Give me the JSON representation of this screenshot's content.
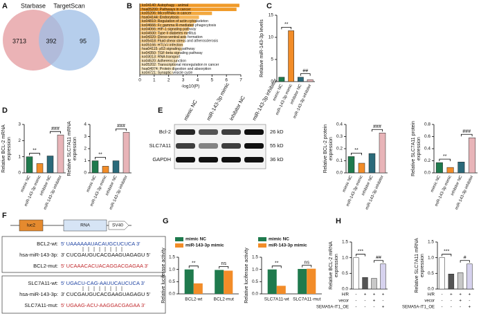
{
  "panels": [
    "A",
    "B",
    "C",
    "D",
    "E",
    "F",
    "G",
    "H"
  ],
  "venn": {
    "sets": [
      {
        "name": "Starbase",
        "color": "#e49a9d"
      },
      {
        "name": "TargetScan",
        "color": "#9dbde6"
      }
    ],
    "regions": [
      3713,
      392,
      95
    ]
  },
  "blot": {
    "lanes": [
      "mimic NC",
      "miR-143-3p mimic",
      "inhibitor NC",
      "miR-143-3p inhibitor"
    ],
    "rows": [
      {
        "protein": "Bcl-2",
        "size": "26 kD"
      },
      {
        "protein": "SLC7A11",
        "size": "55 kD"
      },
      {
        "protein": "GAPDH",
        "size": "36 kD"
      }
    ]
  },
  "construct": {
    "elements": [
      "luc2",
      "RNA",
      "SV40"
    ]
  },
  "sequences": [
    [
      {
        "name": "BCL2-wt:",
        "seq": "5' UAAAAAAUACAUGCUCUCA 3'"
      },
      {
        "name": "hsa-miR-143-3p:",
        "seq": "3' CUCGAUGUCACGAAGUAGAGU 5'"
      },
      {
        "name": "BCL2-mut:",
        "seq": "5' UCAAACACUACAGGACGAGAA 3'"
      }
    ],
    [
      {
        "name": "SLC7A11-wt:",
        "seq": "5' UGACU-CAG-AAUUCAUCUCA 3'"
      },
      {
        "name": "hsa-miR-143-3p:",
        "seq": "3' CUCGAUGUCACGAAGUAGAGU 5'"
      },
      {
        "name": "SLC7A11-mut:",
        "seq": "5' UGAAG-ACU-AAGGACGAGAA 3'"
      }
    ]
  ],
  "chart_data": [
    {
      "type": "barh",
      "xlabel": "-log10(P)",
      "categories": [
        "ko04140: Autophagy - animal",
        "hsa05200: Pathways in cancer",
        "ko05206: MicroRNAs in cancer",
        "hsa04144: Endocytosis",
        "ko04810: Regulation of actin cytoskeleton",
        "ko04666: Fc gamma R-mediated phagocytosis",
        "ko04066: HIF-1 signaling pathway",
        "ko04930: Type II diabetes mellitus",
        "ko04320: Dorso-ventral axis formation",
        "ko05418: Fluid shear stress and atherosclerosis",
        "ko05166: HTLV-I infection",
        "hsa04115: p53 signaling pathway",
        "ko04350: TGF-beta signaling pathway",
        "ko03013: RNA transport",
        "ko04520: Adherens junction",
        "ko05202: Transcriptional misregulation in cancer",
        "hsa04974: Protein digestion and absorption",
        "ko04721: Synaptic vesicle cycle"
      ],
      "values": [
        6.9,
        6.7,
        5.0,
        4.1,
        3.9,
        3.7,
        3.4,
        3.3,
        3.2,
        3.1,
        3.0,
        2.9,
        2.8,
        2.7,
        2.6,
        2.5,
        2.4,
        2.3
      ],
      "colors": [
        "#f09a28",
        "#f09a28",
        "#f2a83e",
        "#f4b456",
        "#f4b85e",
        "#f5bd68",
        "#f6c272",
        "#f6c67a",
        "#f7ca82",
        "#f7ce8a",
        "#f8d292",
        "#f8d69a",
        "#f9daa2",
        "#f9deaa",
        "#fae2b2",
        "#fae5b9",
        "#fbe9c1",
        "#fbecc8"
      ],
      "xlim": [
        0,
        7
      ],
      "xticks": [
        0,
        1,
        2,
        3,
        4,
        5,
        6,
        7
      ]
    },
    {
      "type": "bar",
      "ylabel": [
        "Relative miR-143-3p levels"
      ],
      "categories": [
        "mimic NC",
        "miR-143-3p mimic",
        "inhibitor NC",
        "miR-143-3p inhibitor"
      ],
      "values": [
        1.0,
        11.5,
        1.0,
        0.45
      ],
      "colors": [
        "#1f7a4d",
        "#f28c28",
        "#2b6a7a",
        "#e8b4b8"
      ],
      "ylim": [
        0,
        15
      ],
      "yticks": [
        0,
        5,
        10,
        15
      ],
      "annotations": [
        "**",
        "##"
      ]
    },
    {
      "type": "bar",
      "ylabel": [
        "Relative BCL-2 mRNA",
        "expression"
      ],
      "categories": [
        "mimic NC",
        "miR-143-3p mimic",
        "inhibitor NC",
        "miR-143-3p inhibitor"
      ],
      "values": [
        1.0,
        0.58,
        1.05,
        2.35
      ],
      "colors": [
        "#1f7a4d",
        "#f28c28",
        "#2b6a7a",
        "#e8b4b8"
      ],
      "ylim": [
        0,
        3
      ],
      "yticks": [
        0,
        1,
        2,
        3
      ],
      "annotations": [
        "**",
        "###"
      ]
    },
    {
      "type": "bar",
      "ylabel": [
        "Relative SLC7A11 mRNA",
        "expression"
      ],
      "categories": [
        "mimic NC",
        "miR-143-3p mimic",
        "inhibitor NC",
        "miR-143-3p inhibitor"
      ],
      "values": [
        1.0,
        0.55,
        1.0,
        3.35
      ],
      "colors": [
        "#1f7a4d",
        "#f28c28",
        "#2b6a7a",
        "#e8b4b8"
      ],
      "ylim": [
        0,
        4
      ],
      "yticks": [
        0,
        1,
        2,
        3,
        4
      ],
      "annotations": [
        "**",
        "###"
      ]
    },
    {
      "type": "bar",
      "ylabel": [
        "Relative BCL-2 protein",
        "expression"
      ],
      "categories": [
        "mimic NC",
        "miR-143-3p mimic",
        "inhibitor NC",
        "miR-143-3p inhibitor"
      ],
      "values": [
        0.135,
        0.08,
        0.16,
        0.33
      ],
      "colors": [
        "#1f7a4d",
        "#f28c28",
        "#2b6a7a",
        "#e8b4b8"
      ],
      "ylim": [
        0,
        0.4
      ],
      "yticks": [
        {
          "value": 0,
          "label": "0.0"
        },
        0.1,
        0.2,
        0.3,
        0.4
      ],
      "annotations": [
        "**",
        "###"
      ]
    },
    {
      "type": "bar",
      "ylabel": [
        "Relative SLC7A11 protein",
        "expression"
      ],
      "categories": [
        "mimic NC",
        "miR-143-3p mimic",
        "inhibitor NC",
        "miR-143-3p inhibitor"
      ],
      "values": [
        0.17,
        0.09,
        0.18,
        0.58
      ],
      "colors": [
        "#1f7a4d",
        "#f28c28",
        "#2b6a7a",
        "#e8b4b8"
      ],
      "ylim": [
        0,
        0.8
      ],
      "yticks": [
        {
          "value": 0,
          "label": "0.0"
        },
        0.2,
        0.4,
        0.6,
        0.8
      ],
      "annotations": [
        "**",
        "###"
      ]
    },
    {
      "type": "grouped_bar",
      "ylabel": [
        "Relative luciferase activity"
      ],
      "categories": [
        "BCL2-wt",
        "BCL2-mut"
      ],
      "series": [
        {
          "name": "mimic NC",
          "color": "#1f7a4d",
          "values": [
            1.0,
            0.98
          ]
        },
        {
          "name": "miR-143-3p mimic",
          "color": "#f28c28",
          "values": [
            0.43,
            0.95
          ]
        }
      ],
      "ylim": [
        0,
        1.5
      ],
      "yticks": [
        {
          "value": 0,
          "label": "0.0"
        },
        0.5,
        {
          "value": 1,
          "label": "1.0"
        },
        1.5
      ],
      "annotations": [
        "**",
        "ns"
      ]
    },
    {
      "type": "grouped_bar",
      "ylabel": [
        "Relative luciferase activity"
      ],
      "categories": [
        "SLC7A11-wt",
        "SLC7A11-mut"
      ],
      "series": [
        {
          "name": "mimic NC",
          "color": "#1f7a4d",
          "values": [
            1.0,
            1.02
          ]
        },
        {
          "name": "miR-143-3p mimic",
          "color": "#f28c28",
          "values": [
            0.33,
            1.03
          ]
        }
      ],
      "ylim": [
        0,
        1.5
      ],
      "yticks": [
        {
          "value": 0,
          "label": "0.0"
        },
        0.5,
        {
          "value": 1,
          "label": "1.0"
        },
        1.5
      ],
      "annotations": [
        "**",
        "ns"
      ]
    },
    {
      "type": "bar",
      "ylabel": [
        "Relative BCL-2 mRNA",
        "expression"
      ],
      "values": [
        1.0,
        0.37,
        0.34,
        0.8
      ],
      "colors": [
        "#ffffff",
        "#555555",
        "#c8c8c8",
        "#d6d2ee"
      ],
      "ylim": [
        0,
        1.5
      ],
      "yticks": [
        {
          "value": 0,
          "label": "0.0"
        },
        0.5,
        {
          "value": 1,
          "label": "1.0"
        },
        1.5
      ],
      "annotations": [
        "***",
        "##"
      ],
      "conditions": [
        {
          "label": "H/R",
          "marks": [
            "-",
            "+",
            "+",
            "+"
          ]
        },
        {
          "label": "vecor",
          "marks": [
            "-",
            "-",
            "+",
            "-"
          ]
        },
        {
          "label": "SEMA5A-IT1_OE",
          "marks": [
            "-",
            "-",
            "-",
            "+"
          ]
        }
      ]
    },
    {
      "type": "bar",
      "ylabel": [
        "Relative SLC7A11 mRNA",
        "expression"
      ],
      "values": [
        1.0,
        0.48,
        0.52,
        0.8
      ],
      "colors": [
        "#ffffff",
        "#555555",
        "#c8c8c8",
        "#d6d2ee"
      ],
      "ylim": [
        0,
        1.5
      ],
      "yticks": [
        {
          "value": 0,
          "label": "0.0"
        },
        0.5,
        {
          "value": 1,
          "label": "1.0"
        },
        1.5
      ],
      "annotations": [
        "***",
        "#"
      ],
      "conditions": [
        {
          "label": "H/R",
          "marks": [
            "-",
            "+",
            "+",
            "+"
          ]
        },
        {
          "label": "vecor",
          "marks": [
            "-",
            "-",
            "+",
            "-"
          ]
        },
        {
          "label": "SEMA5A-IT1_OE",
          "marks": [
            "-",
            "-",
            "-",
            "+"
          ]
        }
      ]
    }
  ]
}
